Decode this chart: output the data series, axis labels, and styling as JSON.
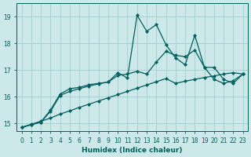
{
  "xlabel": "Humidex (Indice chaleur)",
  "xlim": [
    -0.5,
    23.5
  ],
  "ylim": [
    14.7,
    19.5
  ],
  "yticks": [
    15,
    16,
    17,
    18,
    19
  ],
  "xticks": [
    0,
    1,
    2,
    3,
    4,
    5,
    6,
    7,
    8,
    9,
    10,
    11,
    12,
    13,
    14,
    15,
    16,
    17,
    18,
    19,
    20,
    21,
    22,
    23
  ],
  "bg_color": "#cce8e8",
  "grid_color": "#9ecece",
  "line_color": "#005f5f",
  "line1": {
    "x": [
      0,
      1,
      2,
      3,
      4,
      5,
      6,
      7,
      8,
      9,
      10,
      11,
      12,
      13,
      14,
      15,
      16,
      17,
      18,
      19,
      20,
      21,
      22,
      23
    ],
    "y": [
      14.85,
      14.97,
      15.08,
      15.2,
      15.35,
      15.47,
      15.6,
      15.72,
      15.84,
      15.96,
      16.08,
      16.2,
      16.32,
      16.44,
      16.56,
      16.68,
      16.5,
      16.58,
      16.65,
      16.72,
      16.78,
      16.85,
      16.9,
      16.85
    ]
  },
  "line2": {
    "x": [
      0,
      1,
      2,
      3,
      4,
      5,
      6,
      7,
      8,
      9,
      10,
      11,
      12,
      13,
      14,
      15,
      16,
      17,
      18,
      19,
      20,
      21,
      22,
      23
    ],
    "y": [
      14.85,
      14.95,
      15.05,
      15.45,
      16.05,
      16.2,
      16.3,
      16.4,
      16.48,
      16.55,
      16.8,
      16.85,
      16.95,
      16.85,
      17.3,
      17.7,
      17.55,
      17.5,
      17.75,
      17.1,
      16.65,
      16.5,
      16.6,
      16.85
    ]
  },
  "line3": {
    "x": [
      0,
      1,
      2,
      3,
      4,
      5,
      6,
      7,
      8,
      9,
      10,
      11,
      12,
      13,
      14,
      15,
      16,
      17,
      18,
      19,
      20,
      21,
      22,
      23
    ],
    "y": [
      14.85,
      14.95,
      15.05,
      15.5,
      16.1,
      16.3,
      16.35,
      16.45,
      16.5,
      16.55,
      16.9,
      16.7,
      19.05,
      18.45,
      18.7,
      17.95,
      17.45,
      17.2,
      18.3,
      17.1,
      17.1,
      16.65,
      16.5,
      16.85
    ]
  }
}
